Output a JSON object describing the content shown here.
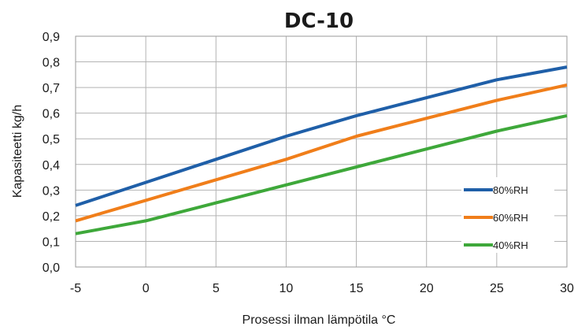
{
  "chart_data": {
    "type": "line",
    "title": "DC-10",
    "xlabel": "Prosessi ilman lämpötila °C",
    "ylabel": "Kapasiteetti kg/h",
    "x": [
      -5,
      0,
      5,
      10,
      15,
      20,
      25,
      30
    ],
    "xlim": [
      -5,
      30
    ],
    "ylim": [
      0,
      0.9
    ],
    "x_ticks": [
      "-5",
      "0",
      "5",
      "10",
      "15",
      "20",
      "25",
      "30"
    ],
    "y_ticks": [
      "0,0",
      "0,1",
      "0,2",
      "0,3",
      "0,4",
      "0,5",
      "0,6",
      "0,7",
      "0,8",
      "0,9"
    ],
    "grid": true,
    "legend_position": "right",
    "series": [
      {
        "name": "80%RH",
        "color": "#1f5fa8",
        "values": [
          0.24,
          0.33,
          0.42,
          0.51,
          0.59,
          0.66,
          0.73,
          0.78
        ]
      },
      {
        "name": "60%RH",
        "color": "#f07e1a",
        "values": [
          0.18,
          0.26,
          0.34,
          0.42,
          0.51,
          0.58,
          0.65,
          0.71
        ]
      },
      {
        "name": "40%RH",
        "color": "#3ea83a",
        "values": [
          0.13,
          0.18,
          0.25,
          0.32,
          0.39,
          0.46,
          0.53,
          0.59
        ]
      }
    ]
  }
}
